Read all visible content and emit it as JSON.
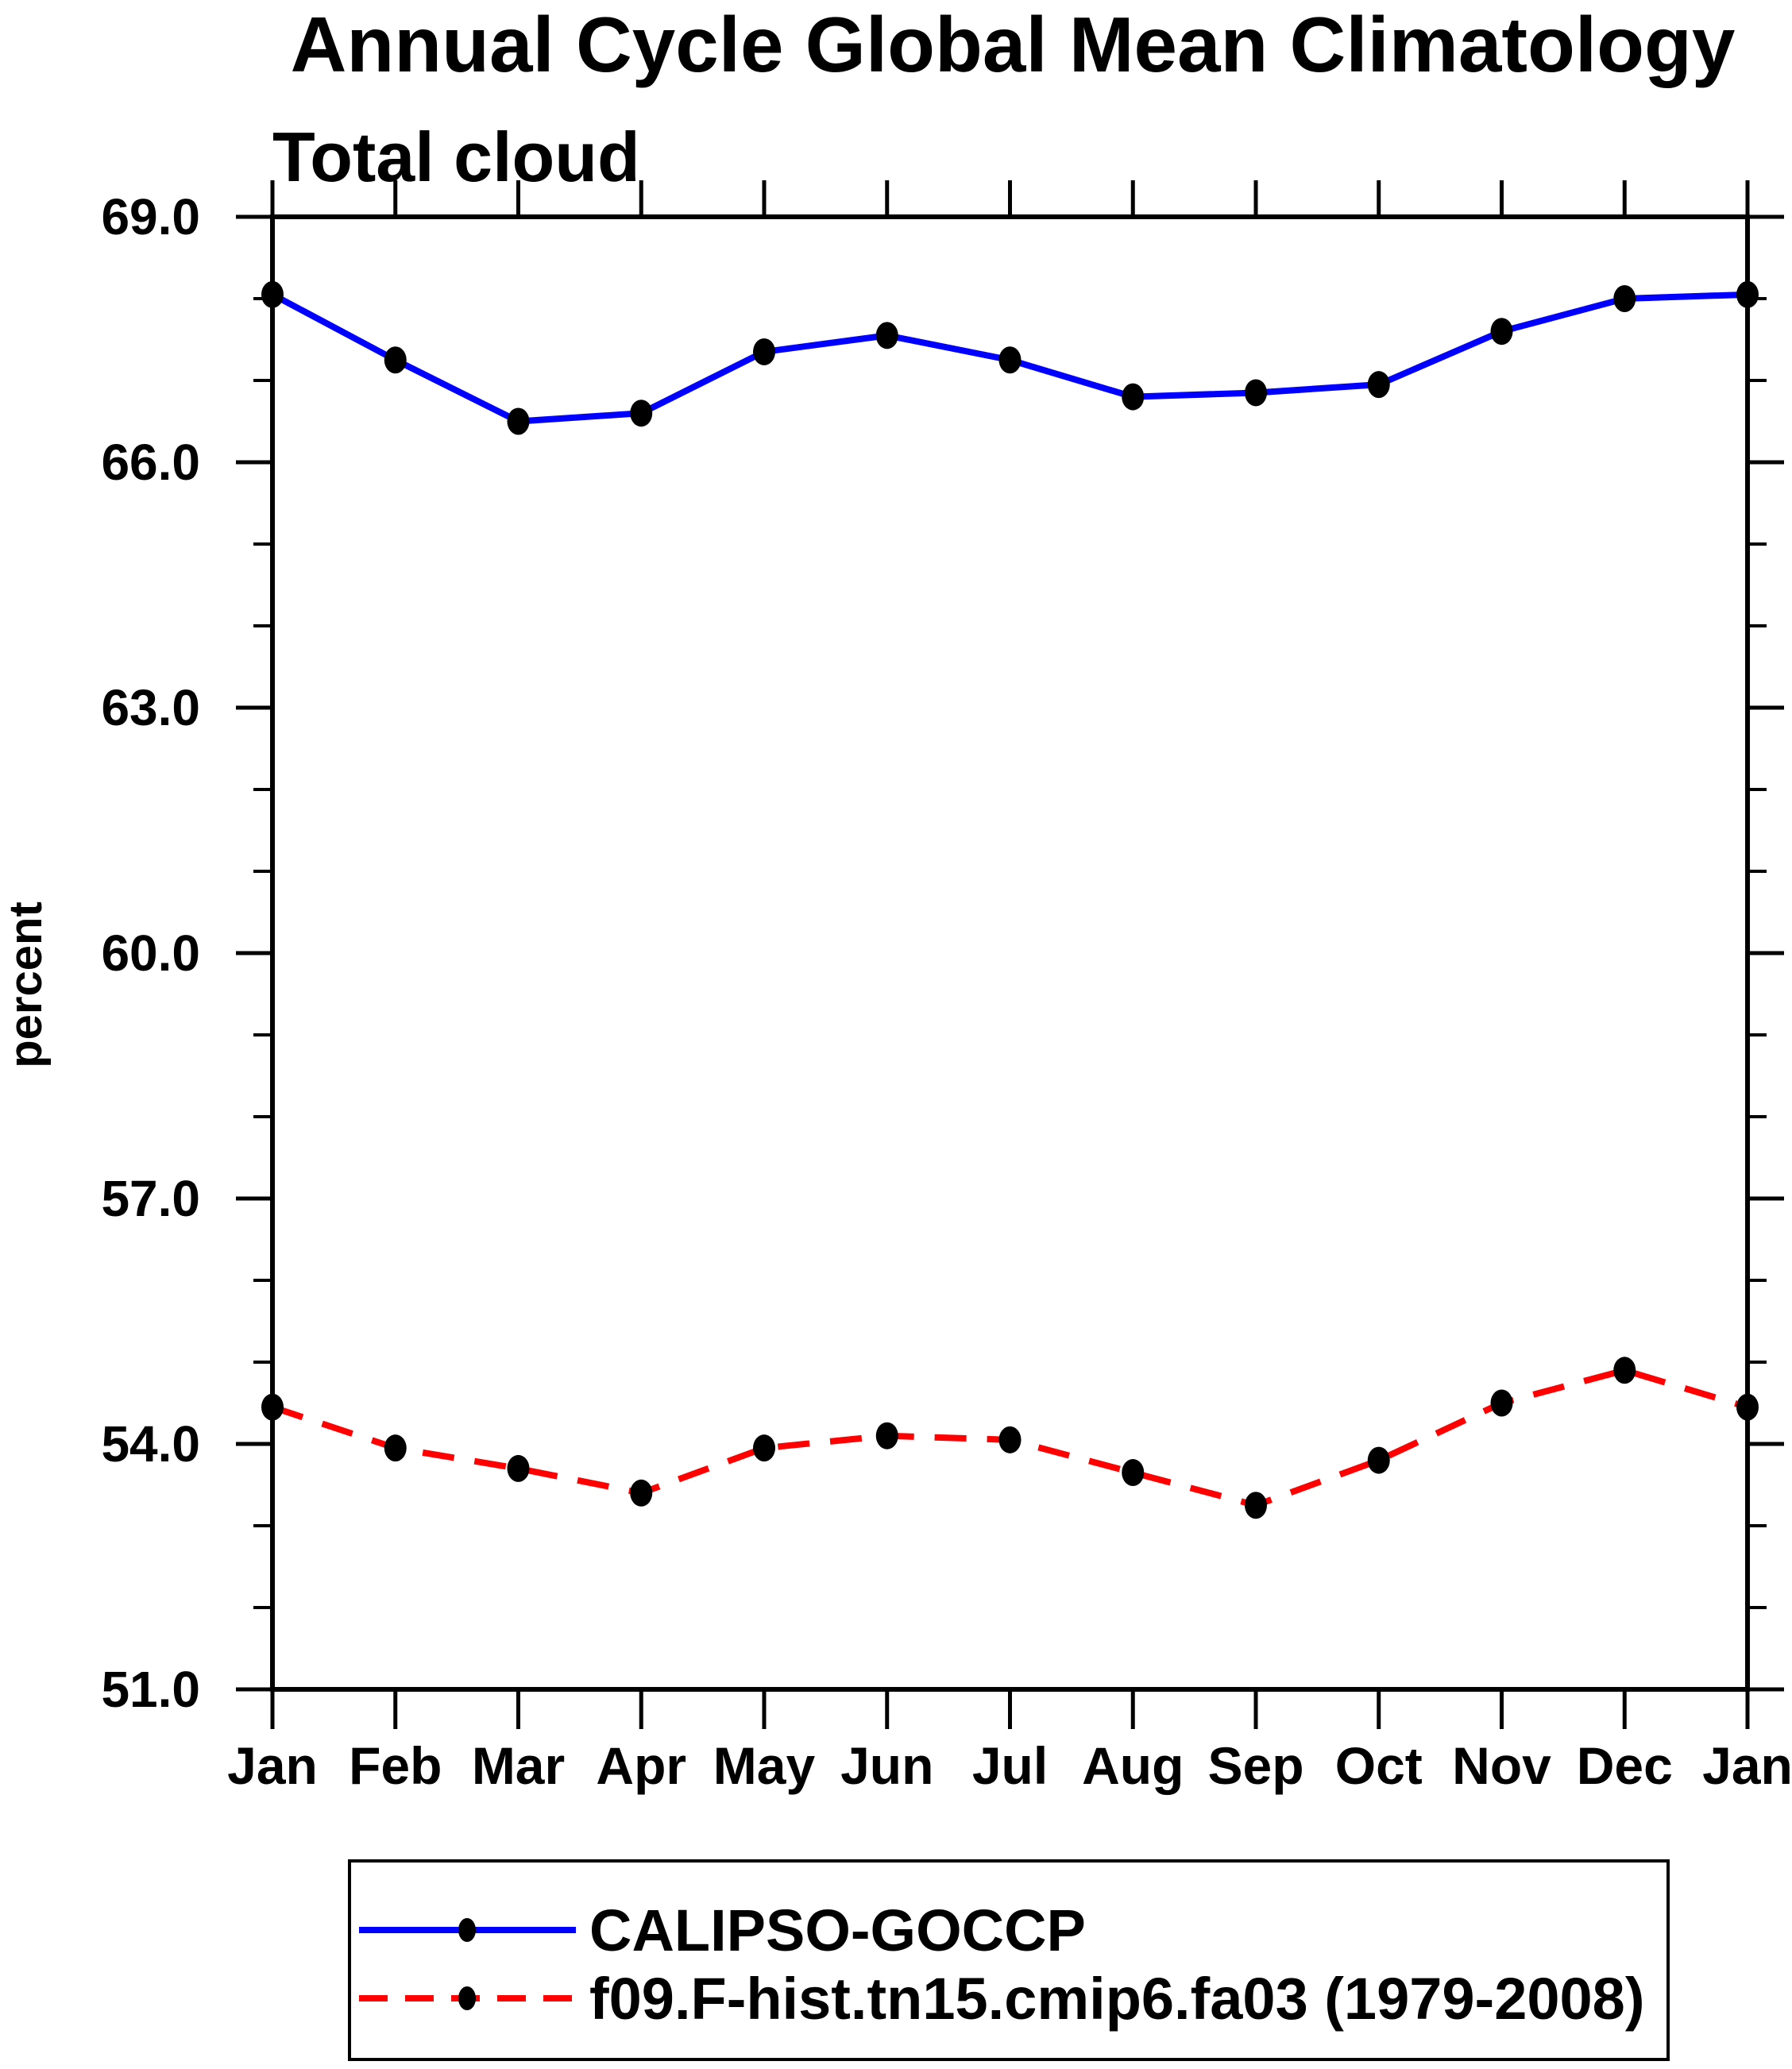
{
  "page": {
    "background": "#ffffff"
  },
  "chart_data": {
    "type": "line",
    "title": "Annual Cycle Global Mean Climatology",
    "subtitle": "Total cloud",
    "xlabel": "",
    "ylabel": "percent",
    "categories": [
      "Jan",
      "Feb",
      "Mar",
      "Apr",
      "May",
      "Jun",
      "Jul",
      "Aug",
      "Sep",
      "Oct",
      "Nov",
      "Dec",
      "Jan"
    ],
    "ylim": [
      51.0,
      69.0
    ],
    "ytick_major_interval": 3.0,
    "ytick_minor_interval": 1.0,
    "ytick_labels": [
      "69.0",
      "66.0",
      "63.0",
      "60.0",
      "57.0",
      "54.0",
      "51.0"
    ],
    "grid": false,
    "legend_position": "bottom",
    "frame_color": "#000000",
    "marker_color": "#000000",
    "series": [
      {
        "name": "CALIPSO-GOCCP",
        "color": "#0000ff",
        "style": "solid",
        "marker": "filled-ellipse",
        "values": [
          68.05,
          67.25,
          66.5,
          66.6,
          67.35,
          67.55,
          67.25,
          66.8,
          66.85,
          66.95,
          67.6,
          68.0,
          68.05
        ]
      },
      {
        "name": "f09.F-hist.tn15.cmip6.fa03 (1979-2008)",
        "color": "#ff0000",
        "style": "dashed",
        "marker": "filled-ellipse",
        "values": [
          54.45,
          53.95,
          53.7,
          53.4,
          53.95,
          54.1,
          54.05,
          53.65,
          53.25,
          53.8,
          54.5,
          54.9,
          54.45
        ]
      }
    ]
  }
}
